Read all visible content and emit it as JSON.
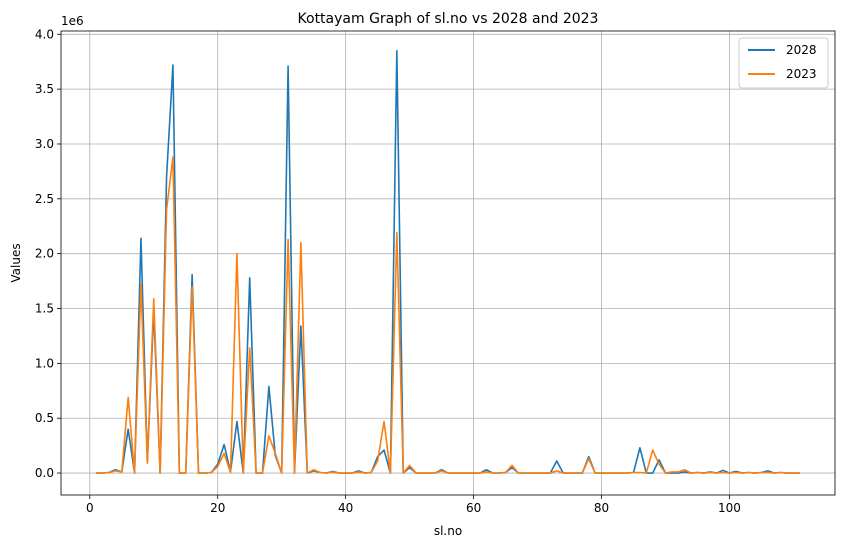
{
  "chart_data": {
    "type": "line",
    "title": "Kottayam Graph of sl.no vs 2028 and 2023",
    "xlabel": "sl.no",
    "ylabel": "Values",
    "y_offset_label": "1e6",
    "xlim": [
      -4.5,
      116.5
    ],
    "ylim": [
      -200000,
      4030000
    ],
    "x_ticks": [
      0,
      20,
      40,
      60,
      80,
      100
    ],
    "x_tick_labels": [
      "0",
      "20",
      "40",
      "60",
      "80",
      "100"
    ],
    "y_ticks": [
      0,
      500000,
      1000000,
      1500000,
      2000000,
      2500000,
      3000000,
      3500000,
      4000000
    ],
    "y_tick_labels": [
      "0.0",
      "0.5",
      "1.0",
      "1.5",
      "2.0",
      "2.5",
      "3.0",
      "3.5",
      "4.0"
    ],
    "grid": true,
    "legend_position": "top-right",
    "x": [
      1,
      2,
      3,
      4,
      5,
      6,
      7,
      8,
      9,
      10,
      11,
      12,
      13,
      14,
      15,
      16,
      17,
      18,
      19,
      20,
      21,
      22,
      23,
      24,
      25,
      26,
      27,
      28,
      29,
      30,
      31,
      32,
      33,
      34,
      35,
      36,
      37,
      38,
      39,
      40,
      41,
      42,
      43,
      44,
      45,
      46,
      47,
      48,
      49,
      50,
      51,
      52,
      53,
      54,
      55,
      56,
      57,
      58,
      59,
      60,
      61,
      62,
      63,
      64,
      65,
      66,
      67,
      68,
      69,
      70,
      71,
      72,
      73,
      74,
      75,
      76,
      77,
      78,
      79,
      80,
      81,
      82,
      83,
      84,
      85,
      86,
      87,
      88,
      89,
      90,
      91,
      92,
      93,
      94,
      95,
      96,
      97,
      98,
      99,
      100,
      101,
      102,
      103,
      104,
      105,
      106,
      107,
      108,
      109,
      110,
      111
    ],
    "series": [
      {
        "name": "2028",
        "color": "#1f77b4",
        "values": [
          0,
          0,
          5000,
          30000,
          10000,
          400000,
          0,
          2140000,
          100000,
          1480000,
          0,
          2700000,
          3720000,
          0,
          0,
          1810000,
          0,
          0,
          5000,
          80000,
          260000,
          10000,
          470000,
          0,
          1780000,
          0,
          0,
          790000,
          160000,
          0,
          3710000,
          0,
          1340000,
          0,
          20000,
          5000,
          0,
          15000,
          0,
          0,
          0,
          20000,
          0,
          5000,
          150000,
          210000,
          0,
          3850000,
          0,
          50000,
          0,
          0,
          0,
          0,
          30000,
          0,
          0,
          0,
          0,
          0,
          0,
          30000,
          0,
          0,
          5000,
          50000,
          0,
          0,
          0,
          0,
          0,
          0,
          110000,
          0,
          0,
          0,
          0,
          150000,
          0,
          0,
          0,
          0,
          0,
          0,
          5000,
          230000,
          0,
          0,
          120000,
          0,
          0,
          0,
          10000,
          0,
          5000,
          0,
          10000,
          0,
          25000,
          0,
          15000,
          0,
          5000,
          0,
          5000,
          20000,
          0,
          5000,
          0,
          0,
          0
        ]
      },
      {
        "name": "2023",
        "color": "#ff7f0e",
        "values": [
          0,
          0,
          5000,
          20000,
          10000,
          690000,
          0,
          1720000,
          90000,
          1590000,
          0,
          2400000,
          2880000,
          0,
          0,
          1700000,
          0,
          0,
          5000,
          60000,
          180000,
          5000,
          2000000,
          0,
          1140000,
          0,
          0,
          340000,
          180000,
          0,
          2130000,
          0,
          2100000,
          0,
          30000,
          5000,
          0,
          10000,
          0,
          0,
          0,
          10000,
          0,
          5000,
          110000,
          470000,
          0,
          2190000,
          0,
          70000,
          0,
          0,
          0,
          0,
          20000,
          0,
          0,
          0,
          0,
          0,
          0,
          10000,
          0,
          0,
          5000,
          70000,
          0,
          0,
          0,
          0,
          0,
          0,
          20000,
          0,
          0,
          0,
          0,
          130000,
          0,
          0,
          0,
          0,
          0,
          0,
          5000,
          5000,
          0,
          210000,
          80000,
          0,
          10000,
          10000,
          30000,
          0,
          5000,
          0,
          5000,
          0,
          5000,
          0,
          5000,
          0,
          5000,
          0,
          5000,
          5000,
          0,
          5000,
          0,
          0,
          0
        ]
      }
    ]
  }
}
